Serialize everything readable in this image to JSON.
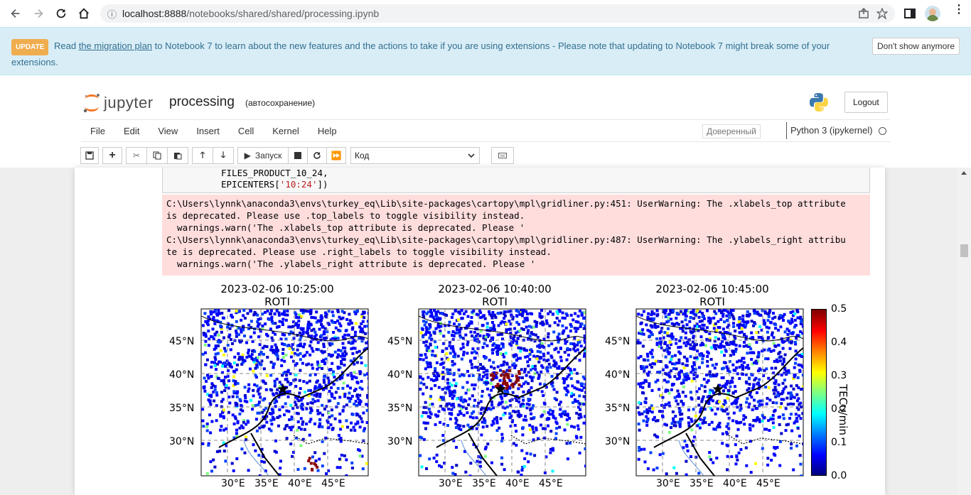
{
  "browser": {
    "url_host": "localhost:8888",
    "url_path": "/notebooks/shared/shared/processing.ipynb"
  },
  "banner": {
    "badge": "UPDATE",
    "text_before": " Read ",
    "link": "the migration plan",
    "text_after": " to Notebook 7 to learn about the new features and the actions to take if you are using extensions - Please note that updating to Notebook 7 might break some of your extensions.",
    "dismiss": "Don't show anymore"
  },
  "header": {
    "logo_text": "jupyter",
    "notebook_name": "processing",
    "autosave": "(автосохранение)",
    "logout": "Logout"
  },
  "menu": {
    "items": [
      "File",
      "Edit",
      "View",
      "Insert",
      "Cell",
      "Kernel",
      "Help"
    ],
    "trusted": "Доверенный",
    "kernel": "Python 3 (ipykernel)"
  },
  "toolbar": {
    "run_label": "Запуск",
    "cell_type": "Код"
  },
  "cell": {
    "code_line1": "FILES_PRODUCT_10_24,",
    "code_line2_a": "EPICENTERS[",
    "code_line2_str": "'10:24'",
    "code_line2_b": "])",
    "stderr": [
      "C:\\Users\\lynnk\\anaconda3\\envs\\turkey_eq\\Lib\\site-packages\\cartopy\\mpl\\gridliner.py:451: UserWarning: The .xlabels_top attribute",
      "is deprecated. Please use .top_labels to toggle visibility instead.",
      "  warnings.warn('The .xlabels_top attribute is deprecated. Please '",
      "C:\\Users\\lynnk\\anaconda3\\envs\\turkey_eq\\Lib\\site-packages\\cartopy\\mpl\\gridliner.py:487: UserWarning: The .ylabels_right attribu",
      "te is deprecated. Please use .right_labels to toggle visibility instead.",
      "  warnings.warn('The .ylabels_right attribute is deprecated. Please '"
    ]
  },
  "figure": {
    "panels": [
      {
        "time": "2023-02-06 10:25:00",
        "subtitle": "ROTI"
      },
      {
        "time": "2023-02-06 10:40:00",
        "subtitle": "ROTI"
      },
      {
        "time": "2023-02-06 10:45:00",
        "subtitle": "ROTI"
      }
    ],
    "lat_ticks": [
      "45°N",
      "40°N",
      "35°N",
      "30°N"
    ],
    "lon_ticks": [
      "30°E",
      "35°E",
      "40°E",
      "45°E"
    ],
    "colorbar": {
      "label": "TECu/min",
      "ticks": [
        "0.5",
        "0.4",
        "0.3",
        "0.2",
        "0.1",
        "0.0"
      ],
      "range": [
        0.0,
        0.5
      ]
    }
  }
}
